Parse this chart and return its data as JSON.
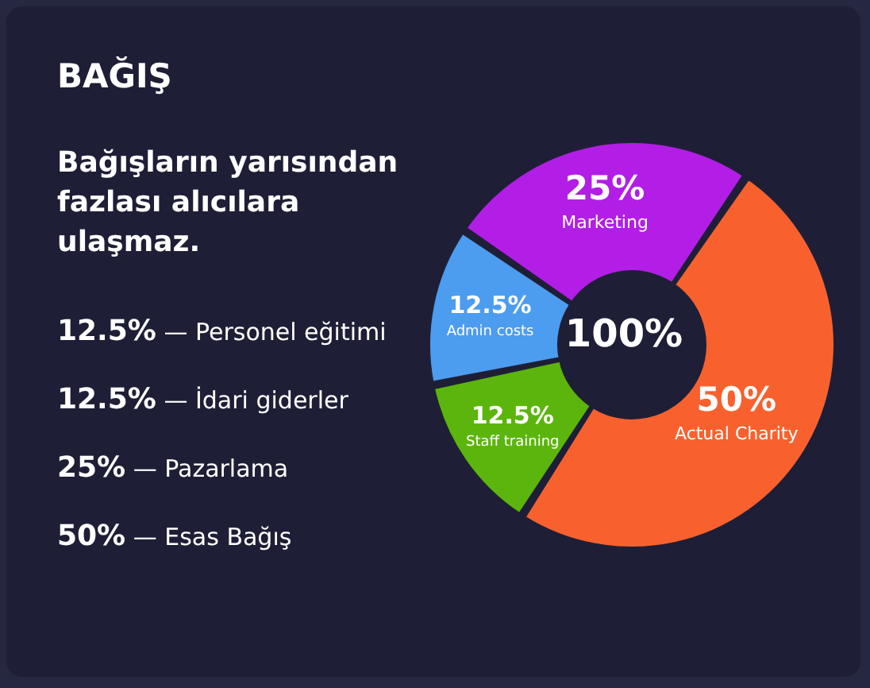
{
  "chart_data": {
    "type": "donut",
    "title": "BAĞIŞ",
    "subtitle": "Bağışların yarısından fazlası alıcılara ulaşmaz.",
    "categories": [
      "Marketing",
      "Actual Charity",
      "Staff training",
      "Admin costs"
    ],
    "values": [
      25,
      50,
      12.5,
      12.5
    ],
    "colors": [
      "#b21ee6",
      "#f8612e",
      "#5cb50c",
      "#4c9cf0"
    ],
    "value_labels": [
      "25%",
      "50%",
      "12.5%",
      "12.5%"
    ],
    "annotations": [
      "100%",
      "12.5% — Personel eğitimi",
      "12.5% — İdari giderler",
      "25% — Pazarlama",
      "50% — Esas Bağış"
    ]
  }
}
